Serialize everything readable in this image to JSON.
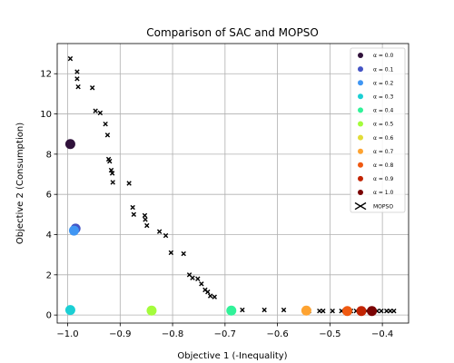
{
  "chart_data": {
    "type": "scatter",
    "title": "Comparison of SAC and MOPSO",
    "xlabel": "Objective 1 (-Inequality)",
    "ylabel": "Objective 2 (Consumption)",
    "xlim": [
      -1.02,
      -0.35
    ],
    "ylim": [
      -0.4,
      13.5
    ],
    "x_ticks": [
      -1.0,
      -0.9,
      -0.8,
      -0.7,
      -0.6,
      -0.5,
      -0.4
    ],
    "x_tick_labels": [
      "−1.0",
      "−0.9",
      "−0.8",
      "−0.7",
      "−0.6",
      "−0.5",
      "−0.4"
    ],
    "y_ticks": [
      0,
      2,
      4,
      6,
      8,
      10,
      12
    ],
    "y_tick_labels": [
      "0",
      "2",
      "4",
      "6",
      "8",
      "10",
      "12"
    ],
    "grid": true,
    "legend_position": "upper right",
    "series": [
      {
        "name": "α = 0.0",
        "color": "#30123b",
        "points": [
          [
            -0.995,
            8.5
          ]
        ]
      },
      {
        "name": "α = 0.1",
        "color": "#4454c4",
        "points": [
          [
            -0.985,
            4.3
          ]
        ]
      },
      {
        "name": "α = 0.2",
        "color": "#4096f3",
        "points": [
          [
            -0.988,
            4.2
          ]
        ]
      },
      {
        "name": "α = 0.3",
        "color": "#1bcfd4",
        "points": [
          [
            -0.995,
            0.25
          ]
        ]
      },
      {
        "name": "α = 0.4",
        "color": "#31f299",
        "points": [
          [
            -0.688,
            0.22
          ]
        ]
      },
      {
        "name": "α = 0.5",
        "color": "#a4fc3c",
        "points": [
          [
            -0.84,
            0.22
          ]
        ]
      },
      {
        "name": "α = 0.6",
        "color": "#e2dc38",
        "points": []
      },
      {
        "name": "α = 0.7",
        "color": "#fea331",
        "points": [
          [
            -0.545,
            0.22
          ]
        ]
      },
      {
        "name": "α = 0.8",
        "color": "#ef5911",
        "points": [
          [
            -0.467,
            0.2
          ]
        ]
      },
      {
        "name": "α = 0.9",
        "color": "#c22403",
        "points": [
          [
            -0.44,
            0.2
          ]
        ]
      },
      {
        "name": "α = 1.0",
        "color": "#7a0403",
        "points": [
          [
            -0.42,
            0.2
          ]
        ]
      },
      {
        "name": "MOPSO",
        "color": "#000000",
        "marker": "x",
        "points": [
          [
            -0.995,
            12.75
          ],
          [
            -0.982,
            12.1
          ],
          [
            -0.982,
            11.75
          ],
          [
            -0.98,
            11.35
          ],
          [
            -0.953,
            11.3
          ],
          [
            -0.947,
            10.15
          ],
          [
            -0.938,
            10.05
          ],
          [
            -0.928,
            9.5
          ],
          [
            -0.924,
            8.95
          ],
          [
            -0.922,
            7.75
          ],
          [
            -0.92,
            7.65
          ],
          [
            -0.917,
            7.2
          ],
          [
            -0.915,
            7.05
          ],
          [
            -0.914,
            6.6
          ],
          [
            -0.883,
            6.55
          ],
          [
            -0.876,
            5.35
          ],
          [
            -0.874,
            5.0
          ],
          [
            -0.853,
            4.95
          ],
          [
            -0.852,
            4.75
          ],
          [
            -0.849,
            4.45
          ],
          [
            -0.825,
            4.15
          ],
          [
            -0.813,
            3.95
          ],
          [
            -0.803,
            3.1
          ],
          [
            -0.779,
            3.05
          ],
          [
            -0.768,
            2.0
          ],
          [
            -0.762,
            1.85
          ],
          [
            -0.752,
            1.8
          ],
          [
            -0.745,
            1.55
          ],
          [
            -0.738,
            1.25
          ],
          [
            -0.733,
            1.15
          ],
          [
            -0.728,
            0.95
          ],
          [
            -0.72,
            0.9
          ],
          [
            -0.667,
            0.25
          ],
          [
            -0.625,
            0.25
          ],
          [
            -0.588,
            0.25
          ],
          [
            -0.54,
            0.2
          ],
          [
            -0.52,
            0.2
          ],
          [
            -0.513,
            0.2
          ],
          [
            -0.495,
            0.2
          ],
          [
            -0.478,
            0.2
          ],
          [
            -0.46,
            0.2
          ],
          [
            -0.45,
            0.2
          ],
          [
            -0.437,
            0.2
          ],
          [
            -0.43,
            0.2
          ],
          [
            -0.42,
            0.2
          ],
          [
            -0.41,
            0.2
          ],
          [
            -0.402,
            0.2
          ],
          [
            -0.392,
            0.2
          ],
          [
            -0.385,
            0.2
          ],
          [
            -0.378,
            0.2
          ]
        ]
      }
    ]
  }
}
